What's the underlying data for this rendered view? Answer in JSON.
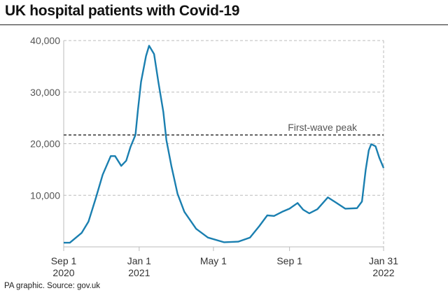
{
  "title": "UK hospital patients with Covid-19",
  "source": "PA graphic. Source: gov.uk",
  "chart_data": {
    "type": "line",
    "title": "UK hospital patients with Covid-19",
    "xlabel": "",
    "ylabel": "",
    "xlim": [
      "2020-09-01",
      "2022-01-31"
    ],
    "ylim": [
      0,
      40000
    ],
    "grid": true,
    "line_color": "#1a7fb0",
    "y_ticks": [
      {
        "value": 10000,
        "label": "10,000"
      },
      {
        "value": 20000,
        "label": "20,000"
      },
      {
        "value": 30000,
        "label": "30,000"
      },
      {
        "value": 40000,
        "label": "40,000"
      }
    ],
    "x_ticks": [
      {
        "date": "2020-09-01",
        "line1": "Sep 1",
        "line2": "2020"
      },
      {
        "date": "2021-01-01",
        "line1": "Jan 1",
        "line2": "2021"
      },
      {
        "date": "2021-05-01",
        "line1": "May 1",
        "line2": ""
      },
      {
        "date": "2021-09-01",
        "line1": "Sep 1",
        "line2": ""
      },
      {
        "date": "2022-01-31",
        "line1": "Jan 31",
        "line2": "2022"
      }
    ],
    "reference_line": {
      "label": "First-wave peak",
      "value": 21700
    },
    "series": [
      {
        "points": [
          [
            "2020-09-01",
            800
          ],
          [
            "2020-09-11",
            800
          ],
          [
            "2020-09-30",
            2700
          ],
          [
            "2020-10-11",
            4900
          ],
          [
            "2020-10-23",
            9500
          ],
          [
            "2020-11-03",
            14000
          ],
          [
            "2020-11-16",
            17600
          ],
          [
            "2020-11-23",
            17600
          ],
          [
            "2020-12-03",
            15700
          ],
          [
            "2020-12-11",
            16700
          ],
          [
            "2020-12-18",
            19400
          ],
          [
            "2020-12-26",
            21700
          ],
          [
            "2020-12-30",
            26600
          ],
          [
            "2021-01-04",
            32000
          ],
          [
            "2021-01-12",
            37000
          ],
          [
            "2021-01-17",
            39000
          ],
          [
            "2021-01-25",
            37400
          ],
          [
            "2021-02-01",
            32000
          ],
          [
            "2021-02-09",
            26200
          ],
          [
            "2021-02-14",
            20700
          ],
          [
            "2021-02-22",
            15700
          ],
          [
            "2021-03-04",
            10300
          ],
          [
            "2021-03-15",
            6800
          ],
          [
            "2021-04-03",
            3500
          ],
          [
            "2021-04-22",
            1800
          ],
          [
            "2021-05-18",
            900
          ],
          [
            "2021-06-10",
            1000
          ],
          [
            "2021-06-29",
            1800
          ],
          [
            "2021-07-14",
            4000
          ],
          [
            "2021-07-27",
            6100
          ],
          [
            "2021-08-07",
            6000
          ],
          [
            "2021-08-20",
            6800
          ],
          [
            "2021-09-01",
            7400
          ],
          [
            "2021-09-14",
            8500
          ],
          [
            "2021-09-23",
            7200
          ],
          [
            "2021-10-03",
            6500
          ],
          [
            "2021-10-16",
            7300
          ],
          [
            "2021-11-02",
            9600
          ],
          [
            "2021-11-15",
            8600
          ],
          [
            "2021-11-30",
            7400
          ],
          [
            "2021-12-19",
            7500
          ],
          [
            "2021-12-27",
            8800
          ],
          [
            "2022-01-02",
            14900
          ],
          [
            "2022-01-07",
            18700
          ],
          [
            "2022-01-11",
            19900
          ],
          [
            "2022-01-18",
            19500
          ],
          [
            "2022-01-24",
            17300
          ],
          [
            "2022-01-31",
            15300
          ]
        ]
      }
    ]
  }
}
